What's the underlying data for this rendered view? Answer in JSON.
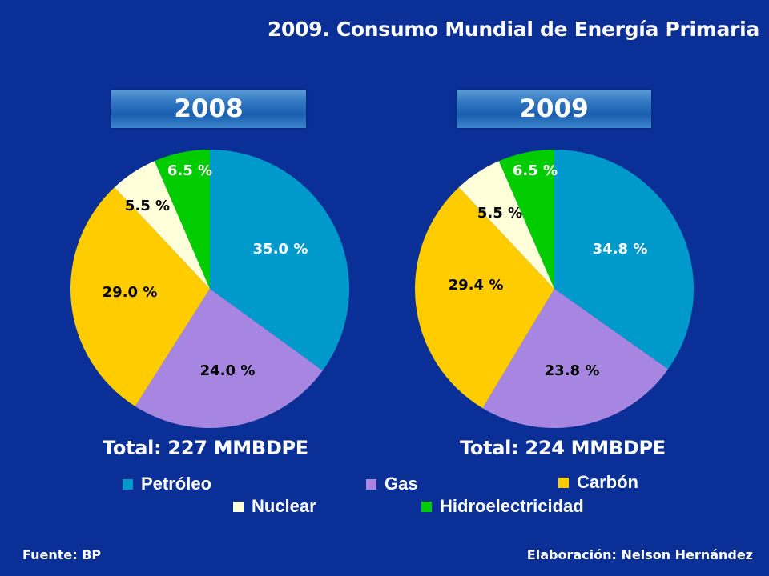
{
  "title": "2009. Consumo Mundial de Energía Primaria",
  "chart_data": [
    {
      "type": "pie",
      "title": "2008",
      "total_label": "Total: 227 MMBDPE",
      "categories": [
        "Petróleo",
        "Gas",
        "Carbón",
        "Nuclear",
        "Hidroelectricidad"
      ],
      "values": [
        35.0,
        24.0,
        29.0,
        5.5,
        6.5
      ],
      "data_labels": [
        "35.0 %",
        "24.0 %",
        "29.0 %",
        "5.5 %",
        "6.5 %"
      ]
    },
    {
      "type": "pie",
      "title": "2009",
      "total_label": "Total: 224 MMBDPE",
      "categories": [
        "Petróleo",
        "Gas",
        "Carbón",
        "Nuclear",
        "Hidroelectricidad"
      ],
      "values": [
        34.8,
        23.8,
        29.4,
        5.5,
        6.5
      ],
      "data_labels": [
        "34.8 %",
        "23.8 %",
        "29.4 %",
        "5.5 %",
        "6.5 %"
      ]
    }
  ],
  "legend": [
    {
      "label": "Petróleo",
      "color": "#0099cc"
    },
    {
      "label": "Gas",
      "color": "#a686e0"
    },
    {
      "label": "Carbón",
      "color": "#ffcc00"
    },
    {
      "label": "Nuclear",
      "color": "#ffffd9"
    },
    {
      "label": "Hidroelectricidad",
      "color": "#00cc00"
    }
  ],
  "label_colors": [
    "#ffffff",
    "#000000",
    "#000000",
    "#000000",
    "#ffffff"
  ],
  "footer": {
    "source": "Fuente: BP",
    "author": "Elaboración: Nelson Hernández"
  }
}
